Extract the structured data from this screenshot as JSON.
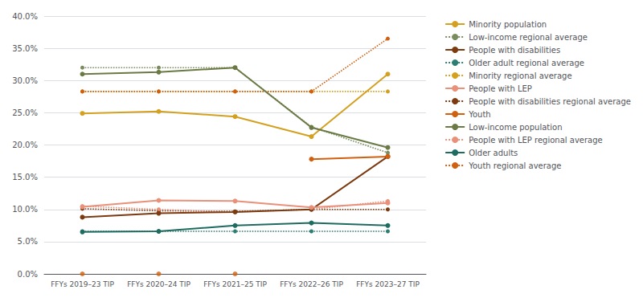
{
  "chart_data": {
    "type": "line",
    "categories": [
      "FFYs 2019–23 TIP",
      "FFYs 2020–24 TIP",
      "FFYs 2021–25 TIP",
      "FFYs 2022–26 TIP",
      "FFYs 2023–27 TIP"
    ],
    "series": [
      {
        "name": "Minority population",
        "color": "#D4A020",
        "line_style": "solid",
        "marker": "circle",
        "values": [
          0.249,
          0.252,
          0.244,
          0.213,
          0.31
        ]
      },
      {
        "name": "Low-income regional average",
        "color": "#7A8C5E",
        "line_style": "dotted",
        "marker": "circle",
        "values": [
          0.32,
          0.32,
          0.32,
          0.228,
          0.188
        ]
      },
      {
        "name": "People with disabilities",
        "color": "#7B3A10",
        "line_style": "solid",
        "marker": "circle",
        "values": [
          0.088,
          0.094,
          0.096,
          0.1,
          0.182
        ]
      },
      {
        "name": "Older adult regional average",
        "color": "#2E7D72",
        "line_style": "dotted",
        "marker": "circle",
        "values": [
          0.066,
          0.066,
          0.066,
          0.066,
          0.066
        ]
      },
      {
        "name": "Minority regional average",
        "color": "#D4A020",
        "line_style": "dotted",
        "marker": "circle",
        "values": [
          0.283,
          0.283,
          0.283,
          0.283,
          0.283
        ]
      },
      {
        "name": "People with LEP",
        "color": "#E8907A",
        "line_style": "solid",
        "marker": "circle",
        "values": [
          0.104,
          0.114,
          0.113,
          0.103,
          0.11
        ]
      },
      {
        "name": "People with disabilities regional average",
        "color": "#7B3A10",
        "line_style": "dotted",
        "marker": "circle",
        "values": [
          0.101,
          0.098,
          0.097,
          0.1,
          0.1
        ]
      },
      {
        "name": "Youth",
        "color": "#D06010",
        "line_style": "solid",
        "marker": "circle",
        "values": [
          null,
          null,
          null,
          0.178,
          0.182
        ],
        "dots": [
          0.0,
          0.0,
          0.0,
          null,
          null
        ]
      },
      {
        "name": "Low-income population",
        "color": "#6B7A45",
        "line_style": "solid",
        "marker": "circle",
        "values": [
          0.31,
          0.313,
          0.32,
          0.227,
          0.196
        ]
      },
      {
        "name": "People with LEP regional average",
        "color": "#E8907A",
        "line_style": "dotted",
        "marker": "circle",
        "values": [
          0.105,
          0.1,
          0.096,
          0.1,
          0.113
        ]
      },
      {
        "name": "Older adults",
        "color": "#1E6B60",
        "line_style": "solid",
        "marker": "circle",
        "values": [
          0.065,
          0.066,
          0.075,
          0.079,
          0.075
        ]
      },
      {
        "name": "Youth regional average",
        "color": "#D06010",
        "line_style": "dotted",
        "marker": "circle",
        "values": [
          0.283,
          0.283,
          0.283,
          0.283,
          0.365
        ]
      }
    ],
    "ylim": [
      0.0,
      0.4
    ],
    "yticks": [
      {
        "value": 0.0,
        "label": "0.0%"
      },
      {
        "value": 0.05,
        "label": "5.0%"
      },
      {
        "value": 0.1,
        "label": "10.0%"
      },
      {
        "value": 0.15,
        "label": "15.0%"
      },
      {
        "value": 0.2,
        "label": "20.0%"
      },
      {
        "value": 0.25,
        "label": "25.0%"
      },
      {
        "value": 0.3,
        "label": "30.0%"
      },
      {
        "value": 0.35,
        "label": "35.0%"
      },
      {
        "value": 0.4,
        "label": "40.0%"
      }
    ],
    "grid": true,
    "legend": "upper right"
  }
}
